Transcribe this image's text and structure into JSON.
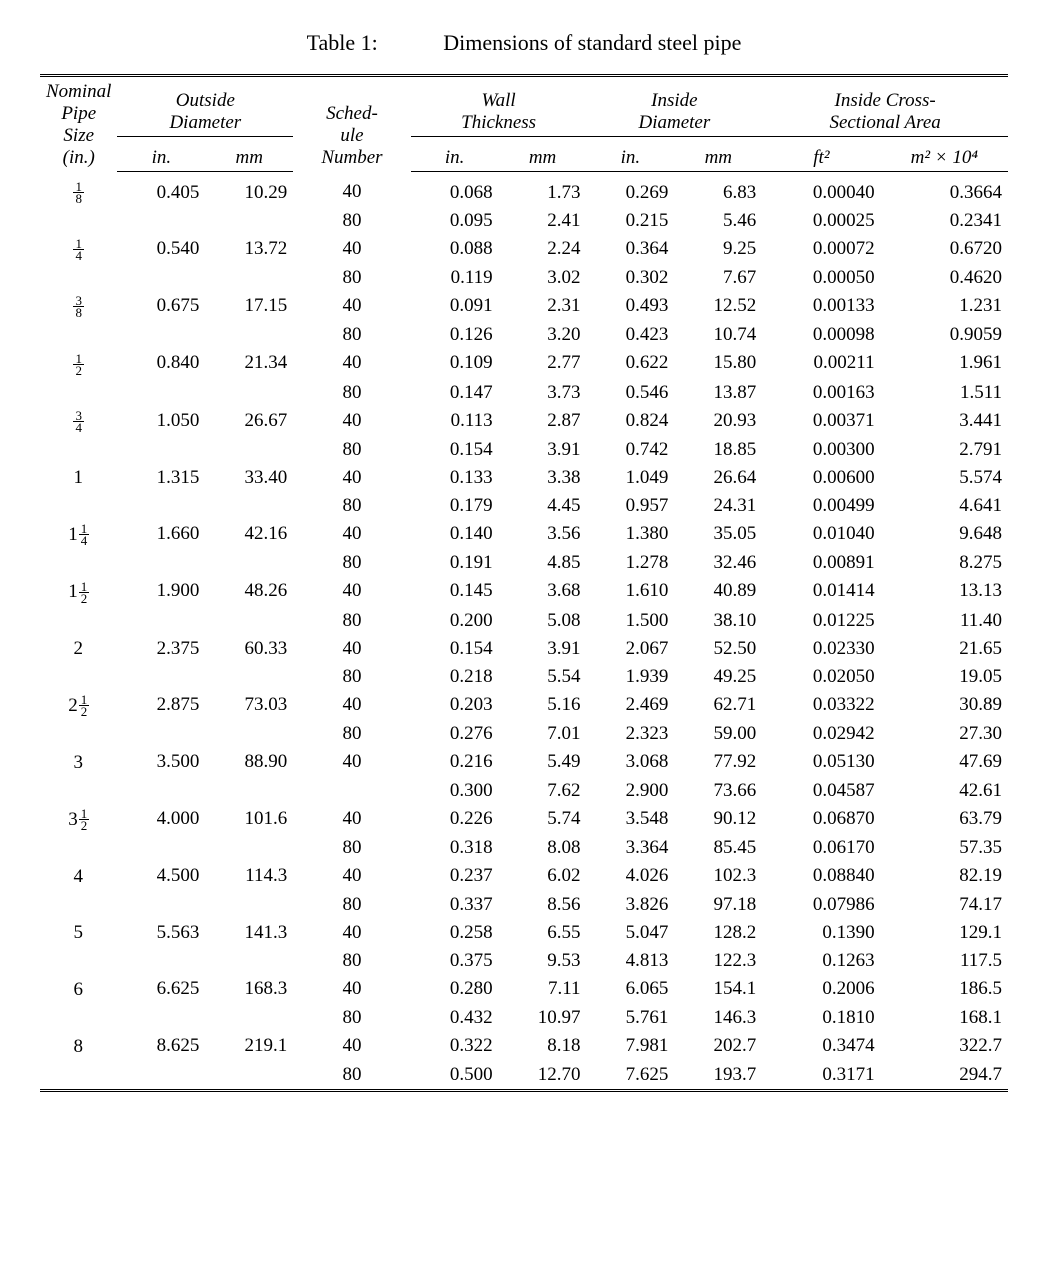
{
  "caption_label": "Table 1:",
  "caption_title": "Dimensions of standard steel pipe",
  "hdr": {
    "nominal_l1": "Nominal",
    "nominal_l2": "Pipe",
    "nominal_l3": "Size",
    "nominal_l4": "(in.)",
    "od": "Outside",
    "od2": "Diameter",
    "sched_l1": "Sched-",
    "sched_l2": "ule",
    "sched_l3": "Number",
    "wall": "Wall",
    "wall2": "Thickness",
    "id": "Inside",
    "id2": "Diameter",
    "area": "Inside Cross-",
    "area2": "Sectional Area",
    "in": "in.",
    "mm": "mm",
    "ft2": "ft²",
    "m2": "m² × 10⁴"
  },
  "rows": [
    {
      "nom": {
        "w": "",
        "n": "1",
        "d": "8"
      },
      "od_in": "0.405",
      "od_mm": "10.29",
      "s": "40",
      "wt_in": "0.068",
      "wt_mm": "1.73",
      "id_in": "0.269",
      "id_mm": "6.83",
      "a_ft": "0.00040",
      "a_m": "0.3664"
    },
    {
      "nom": null,
      "od_in": "",
      "od_mm": "",
      "s": "80",
      "wt_in": "0.095",
      "wt_mm": "2.41",
      "id_in": "0.215",
      "id_mm": "5.46",
      "a_ft": "0.00025",
      "a_m": "0.2341"
    },
    {
      "nom": {
        "w": "",
        "n": "1",
        "d": "4"
      },
      "od_in": "0.540",
      "od_mm": "13.72",
      "s": "40",
      "wt_in": "0.088",
      "wt_mm": "2.24",
      "id_in": "0.364",
      "id_mm": "9.25",
      "a_ft": "0.00072",
      "a_m": "0.6720"
    },
    {
      "nom": null,
      "od_in": "",
      "od_mm": "",
      "s": "80",
      "wt_in": "0.119",
      "wt_mm": "3.02",
      "id_in": "0.302",
      "id_mm": "7.67",
      "a_ft": "0.00050",
      "a_m": "0.4620"
    },
    {
      "nom": {
        "w": "",
        "n": "3",
        "d": "8"
      },
      "od_in": "0.675",
      "od_mm": "17.15",
      "s": "40",
      "wt_in": "0.091",
      "wt_mm": "2.31",
      "id_in": "0.493",
      "id_mm": "12.52",
      "a_ft": "0.00133",
      "a_m": "1.231"
    },
    {
      "nom": null,
      "od_in": "",
      "od_mm": "",
      "s": "80",
      "wt_in": "0.126",
      "wt_mm": "3.20",
      "id_in": "0.423",
      "id_mm": "10.74",
      "a_ft": "0.00098",
      "a_m": "0.9059"
    },
    {
      "nom": {
        "w": "",
        "n": "1",
        "d": "2"
      },
      "od_in": "0.840",
      "od_mm": "21.34",
      "s": "40",
      "wt_in": "0.109",
      "wt_mm": "2.77",
      "id_in": "0.622",
      "id_mm": "15.80",
      "a_ft": "0.00211",
      "a_m": "1.961"
    },
    {
      "nom": null,
      "od_in": "",
      "od_mm": "",
      "s": "80",
      "wt_in": "0.147",
      "wt_mm": "3.73",
      "id_in": "0.546",
      "id_mm": "13.87",
      "a_ft": "0.00163",
      "a_m": "1.511"
    },
    {
      "nom": {
        "w": "",
        "n": "3",
        "d": "4"
      },
      "od_in": "1.050",
      "od_mm": "26.67",
      "s": "40",
      "wt_in": "0.113",
      "wt_mm": "2.87",
      "id_in": "0.824",
      "id_mm": "20.93",
      "a_ft": "0.00371",
      "a_m": "3.441"
    },
    {
      "nom": null,
      "od_in": "",
      "od_mm": "",
      "s": "80",
      "wt_in": "0.154",
      "wt_mm": "3.91",
      "id_in": "0.742",
      "id_mm": "18.85",
      "a_ft": "0.00300",
      "a_m": "2.791"
    },
    {
      "nom": {
        "w": "1",
        "n": "",
        "d": ""
      },
      "od_in": "1.315",
      "od_mm": "33.40",
      "s": "40",
      "wt_in": "0.133",
      "wt_mm": "3.38",
      "id_in": "1.049",
      "id_mm": "26.64",
      "a_ft": "0.00600",
      "a_m": "5.574"
    },
    {
      "nom": null,
      "od_in": "",
      "od_mm": "",
      "s": "80",
      "wt_in": "0.179",
      "wt_mm": "4.45",
      "id_in": "0.957",
      "id_mm": "24.31",
      "a_ft": "0.00499",
      "a_m": "4.641"
    },
    {
      "nom": {
        "w": "1",
        "n": "1",
        "d": "4"
      },
      "od_in": "1.660",
      "od_mm": "42.16",
      "s": "40",
      "wt_in": "0.140",
      "wt_mm": "3.56",
      "id_in": "1.380",
      "id_mm": "35.05",
      "a_ft": "0.01040",
      "a_m": "9.648"
    },
    {
      "nom": null,
      "od_in": "",
      "od_mm": "",
      "s": "80",
      "wt_in": "0.191",
      "wt_mm": "4.85",
      "id_in": "1.278",
      "id_mm": "32.46",
      "a_ft": "0.00891",
      "a_m": "8.275"
    },
    {
      "nom": {
        "w": "1",
        "n": "1",
        "d": "2"
      },
      "od_in": "1.900",
      "od_mm": "48.26",
      "s": "40",
      "wt_in": "0.145",
      "wt_mm": "3.68",
      "id_in": "1.610",
      "id_mm": "40.89",
      "a_ft": "0.01414",
      "a_m": "13.13"
    },
    {
      "nom": null,
      "od_in": "",
      "od_mm": "",
      "s": "80",
      "wt_in": "0.200",
      "wt_mm": "5.08",
      "id_in": "1.500",
      "id_mm": "38.10",
      "a_ft": "0.01225",
      "a_m": "11.40"
    },
    {
      "nom": {
        "w": "2",
        "n": "",
        "d": ""
      },
      "od_in": "2.375",
      "od_mm": "60.33",
      "s": "40",
      "wt_in": "0.154",
      "wt_mm": "3.91",
      "id_in": "2.067",
      "id_mm": "52.50",
      "a_ft": "0.02330",
      "a_m": "21.65"
    },
    {
      "nom": null,
      "od_in": "",
      "od_mm": "",
      "s": "80",
      "wt_in": "0.218",
      "wt_mm": "5.54",
      "id_in": "1.939",
      "id_mm": "49.25",
      "a_ft": "0.02050",
      "a_m": "19.05"
    },
    {
      "nom": {
        "w": "2",
        "n": "1",
        "d": "2"
      },
      "od_in": "2.875",
      "od_mm": "73.03",
      "s": "40",
      "wt_in": "0.203",
      "wt_mm": "5.16",
      "id_in": "2.469",
      "id_mm": "62.71",
      "a_ft": "0.03322",
      "a_m": "30.89"
    },
    {
      "nom": null,
      "od_in": "",
      "od_mm": "",
      "s": "80",
      "wt_in": "0.276",
      "wt_mm": "7.01",
      "id_in": "2.323",
      "id_mm": "59.00",
      "a_ft": "0.02942",
      "a_m": "27.30"
    },
    {
      "nom": {
        "w": "3",
        "n": "",
        "d": ""
      },
      "od_in": "3.500",
      "od_mm": "88.90",
      "s": "40",
      "wt_in": "0.216",
      "wt_mm": "5.49",
      "id_in": "3.068",
      "id_mm": "77.92",
      "a_ft": "0.05130",
      "a_m": "47.69"
    },
    {
      "nom": null,
      "od_in": "",
      "od_mm": "",
      "s": "",
      "wt_in": "0.300",
      "wt_mm": "7.62",
      "id_in": "2.900",
      "id_mm": "73.66",
      "a_ft": "0.04587",
      "a_m": "42.61"
    },
    {
      "nom": {
        "w": "3",
        "n": "1",
        "d": "2"
      },
      "od_in": "4.000",
      "od_mm": "101.6",
      "s": "40",
      "wt_in": "0.226",
      "wt_mm": "5.74",
      "id_in": "3.548",
      "id_mm": "90.12",
      "a_ft": "0.06870",
      "a_m": "63.79"
    },
    {
      "nom": null,
      "od_in": "",
      "od_mm": "",
      "s": "80",
      "wt_in": "0.318",
      "wt_mm": "8.08",
      "id_in": "3.364",
      "id_mm": "85.45",
      "a_ft": "0.06170",
      "a_m": "57.35"
    },
    {
      "nom": {
        "w": "4",
        "n": "",
        "d": ""
      },
      "od_in": "4.500",
      "od_mm": "114.3",
      "s": "40",
      "wt_in": "0.237",
      "wt_mm": "6.02",
      "id_in": "4.026",
      "id_mm": "102.3",
      "a_ft": "0.08840",
      "a_m": "82.19"
    },
    {
      "nom": null,
      "od_in": "",
      "od_mm": "",
      "s": "80",
      "wt_in": "0.337",
      "wt_mm": "8.56",
      "id_in": "3.826",
      "id_mm": "97.18",
      "a_ft": "0.07986",
      "a_m": "74.17"
    },
    {
      "nom": {
        "w": "5",
        "n": "",
        "d": ""
      },
      "od_in": "5.563",
      "od_mm": "141.3",
      "s": "40",
      "wt_in": "0.258",
      "wt_mm": "6.55",
      "id_in": "5.047",
      "id_mm": "128.2",
      "a_ft": "0.1390",
      "a_m": "129.1"
    },
    {
      "nom": null,
      "od_in": "",
      "od_mm": "",
      "s": "80",
      "wt_in": "0.375",
      "wt_mm": "9.53",
      "id_in": "4.813",
      "id_mm": "122.3",
      "a_ft": "0.1263",
      "a_m": "117.5"
    },
    {
      "nom": {
        "w": "6",
        "n": "",
        "d": ""
      },
      "od_in": "6.625",
      "od_mm": "168.3",
      "s": "40",
      "wt_in": "0.280",
      "wt_mm": "7.11",
      "id_in": "6.065",
      "id_mm": "154.1",
      "a_ft": "0.2006",
      "a_m": "186.5"
    },
    {
      "nom": null,
      "od_in": "",
      "od_mm": "",
      "s": "80",
      "wt_in": "0.432",
      "wt_mm": "10.97",
      "id_in": "5.761",
      "id_mm": "146.3",
      "a_ft": "0.1810",
      "a_m": "168.1"
    },
    {
      "nom": {
        "w": "8",
        "n": "",
        "d": ""
      },
      "od_in": "8.625",
      "od_mm": "219.1",
      "s": "40",
      "wt_in": "0.322",
      "wt_mm": "8.18",
      "id_in": "7.981",
      "id_mm": "202.7",
      "a_ft": "0.3474",
      "a_m": "322.7"
    },
    {
      "nom": null,
      "od_in": "",
      "od_mm": "",
      "s": "80",
      "wt_in": "0.500",
      "wt_mm": "12.70",
      "id_in": "7.625",
      "id_mm": "193.7",
      "a_ft": "0.3171",
      "a_m": "294.7"
    }
  ]
}
